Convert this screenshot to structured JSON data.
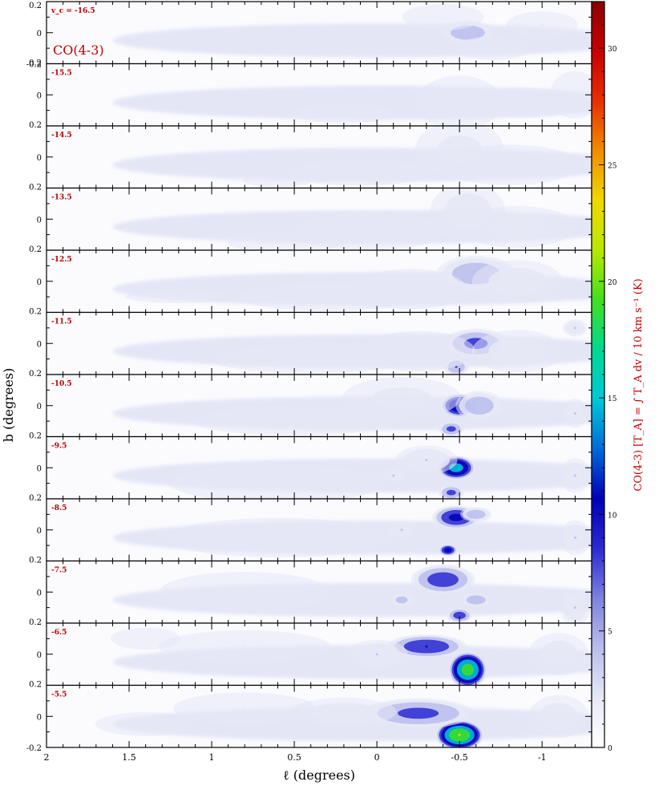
{
  "chart_data": {
    "type": "heatmap",
    "molecule_label": "CO(4-3)",
    "velocity_symbol": "v",
    "velocity_subscript": "c",
    "xlabel": "ℓ (degrees)",
    "ylabel": "b (degrees)",
    "x_range": [
      2,
      -1.3
    ],
    "y_range": [
      -0.2,
      0.2
    ],
    "x_ticks": [
      "2",
      "1.5",
      "1",
      "0.5",
      "0",
      "-0.5",
      "-1"
    ],
    "y_ticks_top": [
      "0.2",
      "0",
      "-0.2"
    ],
    "y_ticks_panel": [
      "0.2",
      "0"
    ],
    "y_ticks_bottom": [
      "0.2",
      "0",
      "-0.2"
    ],
    "colorbar": {
      "label": "CO(4-3)  [T_A]  =  ∫ T_A dv / 10 km s⁻¹  (K)",
      "ticks": [
        "0",
        "5",
        "10",
        "15",
        "20",
        "25",
        "30"
      ],
      "range": [
        0,
        32
      ],
      "colors": [
        "#ffffff",
        "#e6e8f6",
        "#b9bdec",
        "#7d82de",
        "#2b2bd2",
        "#0000b8",
        "#006ad8",
        "#00c8d8",
        "#00d890",
        "#40e020",
        "#b8e800",
        "#f0d800",
        "#f08c00",
        "#e83000",
        "#c80000",
        "#8a0000"
      ]
    },
    "panels": [
      {
        "velocity": "v_c = -16.5",
        "blobs": [
          [
            -0.55,
            0.0,
            0.18,
            0.08,
            6
          ],
          [
            -1.0,
            0.05,
            0.25,
            0.1,
            2
          ],
          [
            -0.7,
            -0.1,
            0.3,
            0.1,
            1.2
          ],
          [
            -0.4,
            0.1,
            0.35,
            0.12,
            1
          ]
        ]
      },
      {
        "velocity": "-15.5",
        "blobs": [
          [
            -0.5,
            -0.05,
            0.3,
            0.2,
            2
          ],
          [
            -0.9,
            -0.05,
            0.4,
            0.12,
            1.5
          ],
          [
            0.2,
            -0.12,
            0.5,
            0.1,
            0.8
          ],
          [
            -1.2,
            0.0,
            0.2,
            0.2,
            1.2
          ]
        ]
      },
      {
        "velocity": "-14.5",
        "blobs": [
          [
            -0.5,
            0.05,
            0.3,
            0.2,
            2.5
          ],
          [
            -0.8,
            -0.05,
            0.5,
            0.15,
            2
          ],
          [
            0.1,
            -0.1,
            0.6,
            0.12,
            1
          ],
          [
            0.6,
            -0.15,
            0.4,
            0.08,
            0.7
          ]
        ]
      },
      {
        "velocity": "-13.5",
        "blobs": [
          [
            -0.55,
            0.05,
            0.25,
            0.2,
            3
          ],
          [
            -0.85,
            -0.05,
            0.4,
            0.15,
            2.5
          ],
          [
            0.05,
            -0.08,
            0.6,
            0.15,
            1.3
          ],
          [
            0.55,
            -0.15,
            0.5,
            0.1,
            1
          ]
        ]
      },
      {
        "velocity": "-12.5",
        "blobs": [
          [
            -0.6,
            0.05,
            0.25,
            0.12,
            6
          ],
          [
            -0.85,
            0.0,
            0.3,
            0.15,
            3
          ],
          [
            -0.2,
            -0.05,
            0.4,
            0.15,
            2
          ],
          [
            0.3,
            -0.1,
            0.7,
            0.12,
            1.2
          ],
          [
            1.2,
            -0.1,
            0.8,
            0.1,
            0.6
          ]
        ]
      },
      {
        "velocity": "-11.5",
        "blobs": [
          [
            -0.6,
            0.0,
            0.2,
            0.1,
            8
          ],
          [
            -0.48,
            -0.15,
            0.08,
            0.06,
            7
          ],
          [
            -0.85,
            -0.05,
            0.3,
            0.15,
            3
          ],
          [
            -0.25,
            -0.05,
            0.4,
            0.15,
            2
          ],
          [
            0.4,
            -0.1,
            0.8,
            0.12,
            1.2
          ],
          [
            -1.2,
            0.1,
            0.08,
            0.06,
            4
          ]
        ]
      },
      {
        "velocity": "-10.5",
        "blobs": [
          [
            -0.5,
            0.0,
            0.12,
            0.08,
            14
          ],
          [
            -0.62,
            0.0,
            0.15,
            0.1,
            6
          ],
          [
            -0.45,
            -0.15,
            0.08,
            0.05,
            8
          ],
          [
            -0.15,
            0.05,
            0.4,
            0.15,
            2.5
          ],
          [
            0.5,
            -0.1,
            0.8,
            0.12,
            1.2
          ],
          [
            -1.2,
            -0.05,
            0.08,
            0.1,
            4
          ]
        ]
      },
      {
        "velocity": "-9.5",
        "blobs": [
          [
            -0.48,
            0.0,
            0.12,
            0.08,
            16
          ],
          [
            -0.45,
            -0.16,
            0.08,
            0.05,
            8
          ],
          [
            -0.3,
            0.05,
            0.2,
            0.1,
            4
          ],
          [
            -0.1,
            -0.05,
            0.08,
            0.05,
            4
          ],
          [
            0.6,
            -0.1,
            0.8,
            0.15,
            1.5
          ],
          [
            -1.2,
            -0.05,
            0.1,
            0.12,
            4
          ]
        ]
      },
      {
        "velocity": "-8.5",
        "blobs": [
          [
            -0.48,
            0.08,
            0.15,
            0.08,
            11
          ],
          [
            -0.43,
            -0.13,
            0.06,
            0.04,
            12
          ],
          [
            -0.6,
            0.1,
            0.1,
            0.05,
            6
          ],
          [
            -0.15,
            0.0,
            0.1,
            0.06,
            4
          ],
          [
            0.6,
            -0.05,
            0.8,
            0.15,
            1.8
          ],
          [
            -1.2,
            -0.05,
            0.1,
            0.12,
            4
          ]
        ]
      },
      {
        "velocity": "-7.5",
        "blobs": [
          [
            -0.4,
            0.08,
            0.2,
            0.1,
            9
          ],
          [
            -0.5,
            -0.15,
            0.08,
            0.05,
            9
          ],
          [
            -0.6,
            -0.05,
            0.1,
            0.05,
            6
          ],
          [
            -0.15,
            -0.05,
            0.08,
            0.05,
            5
          ],
          [
            0.8,
            0.0,
            0.6,
            0.15,
            2
          ],
          [
            -1.2,
            -0.1,
            0.1,
            0.12,
            4
          ]
        ]
      },
      {
        "velocity": "-6.5",
        "blobs": [
          [
            -0.55,
            -0.1,
            0.12,
            0.12,
            20
          ],
          [
            -0.3,
            0.05,
            0.25,
            0.08,
            10
          ],
          [
            0.0,
            0.0,
            0.2,
            0.1,
            4
          ],
          [
            0.8,
            0.05,
            0.6,
            0.12,
            2
          ],
          [
            -1.1,
            0.0,
            0.2,
            0.15,
            3
          ],
          [
            1.4,
            0.1,
            0.3,
            0.1,
            1
          ]
        ]
      },
      {
        "velocity": "-5.5",
        "blobs": [
          [
            -0.5,
            -0.12,
            0.15,
            0.1,
            22
          ],
          [
            -0.25,
            0.02,
            0.35,
            0.1,
            8
          ],
          [
            0.2,
            0.03,
            0.35,
            0.1,
            3
          ],
          [
            0.8,
            0.05,
            0.5,
            0.12,
            2
          ],
          [
            -1.1,
            0.0,
            0.2,
            0.15,
            3
          ],
          [
            1.4,
            -0.05,
            0.4,
            0.1,
            1.2
          ]
        ]
      }
    ]
  }
}
